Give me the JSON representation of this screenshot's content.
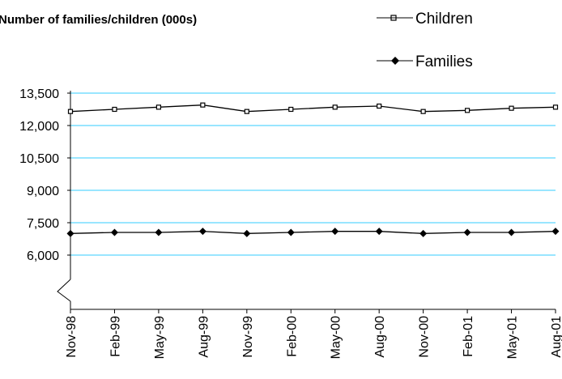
{
  "chart_data": {
    "type": "line",
    "title": "Number of families/children (000s)",
    "categories": [
      "Nov-98",
      "Feb-99",
      "May-99",
      "Aug-99",
      "Nov-99",
      "Feb-00",
      "May-00",
      "Aug-00",
      "Nov-00",
      "Feb-01",
      "May-01",
      "Aug-01"
    ],
    "yticks": [
      "13,500",
      "12,000",
      "10,500",
      "9,000",
      "7,500",
      "6,000"
    ],
    "ytick_values": [
      13500,
      12000,
      10500,
      9000,
      7500,
      6000
    ],
    "ylim": [
      6000,
      13500
    ],
    "axis_break": true,
    "grid": true,
    "gridline_color": "#33ccff",
    "legend_position": "top-right",
    "series": [
      {
        "name": "Children",
        "marker": "square",
        "color": "#000000",
        "values": [
          12650,
          12750,
          12850,
          12950,
          12650,
          12750,
          12850,
          12900,
          12650,
          12700,
          12800,
          12850
        ]
      },
      {
        "name": "Families",
        "marker": "diamond",
        "color": "#000000",
        "values": [
          7000,
          7050,
          7050,
          7100,
          7000,
          7050,
          7100,
          7100,
          7000,
          7050,
          7050,
          7100
        ]
      }
    ]
  }
}
